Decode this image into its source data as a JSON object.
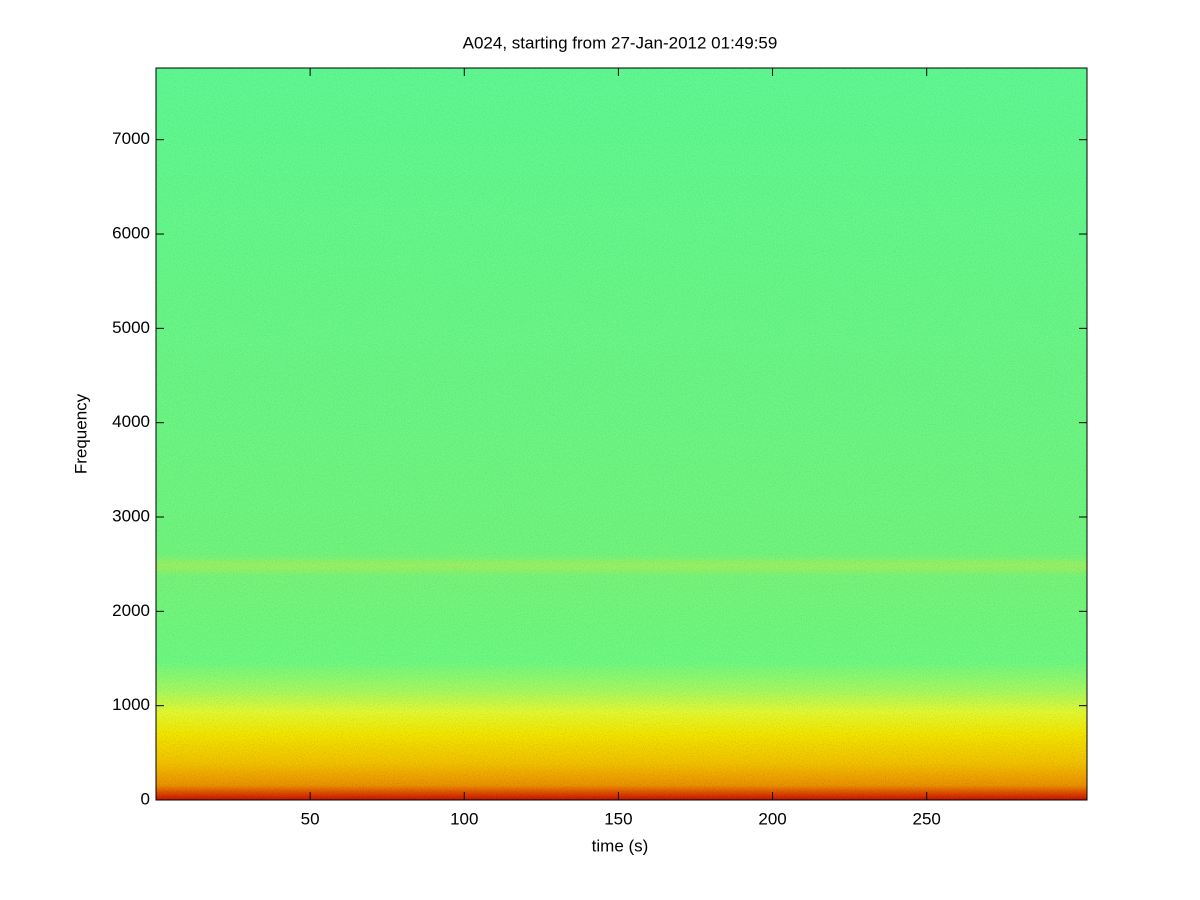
{
  "chart_data": {
    "type": "spectrogram",
    "title": "A024, starting from 27-Jan-2012 01:49:59",
    "x_label": "time (s)",
    "y_label": "Frequency",
    "xlim": [
      0,
      302
    ],
    "xticks": [
      50,
      100,
      150,
      200,
      250
    ],
    "ylim": [
      0,
      7760
    ],
    "yticks": [
      0,
      1000,
      2000,
      3000,
      4000,
      5000,
      6000,
      7000
    ]
  }
}
